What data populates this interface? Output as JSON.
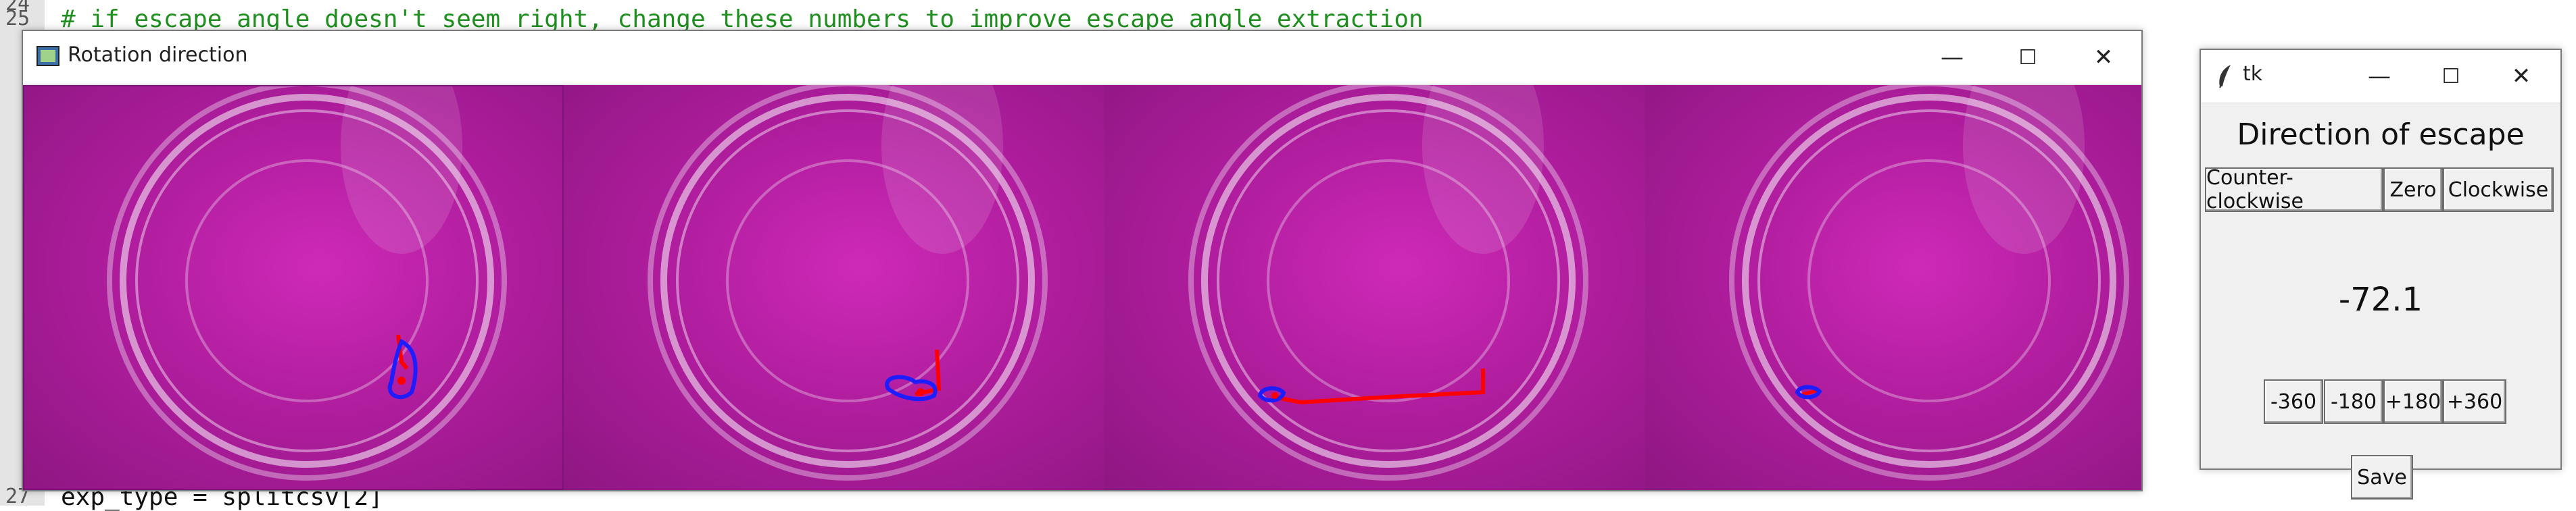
{
  "editor": {
    "lines": [
      {
        "num": "24",
        "text": ""
      },
      {
        "num": "25",
        "text": "# if escape angle doesn't seem right, change these numbers to improve escape angle extraction"
      },
      {
        "num": "27",
        "text": "exp_type = splitcsv[2]"
      }
    ]
  },
  "rotation_window": {
    "title": "Rotation direction",
    "controls": {
      "minimize": "—",
      "maximize": "☐",
      "close": "✕"
    }
  },
  "tk_window": {
    "title": "tk",
    "heading": "Direction of escape",
    "buttons": {
      "counter_clockwise": "Counter-clockwise",
      "zero": "Zero",
      "clockwise": "Clockwise"
    },
    "angle_value": "-72.1",
    "adjust_buttons": [
      "-360",
      "-180",
      "+180",
      "+360"
    ],
    "save_label": "Save",
    "controls": {
      "minimize": "—",
      "maximize": "☐",
      "close": "✕"
    }
  },
  "colors": {
    "dish_background": "#b01d9e",
    "track_red": "#ff0000",
    "outline_blue": "#1d1dff"
  },
  "icons": [
    "app-icon",
    "feather-icon",
    "minimize-icon",
    "maximize-icon",
    "close-icon"
  ]
}
